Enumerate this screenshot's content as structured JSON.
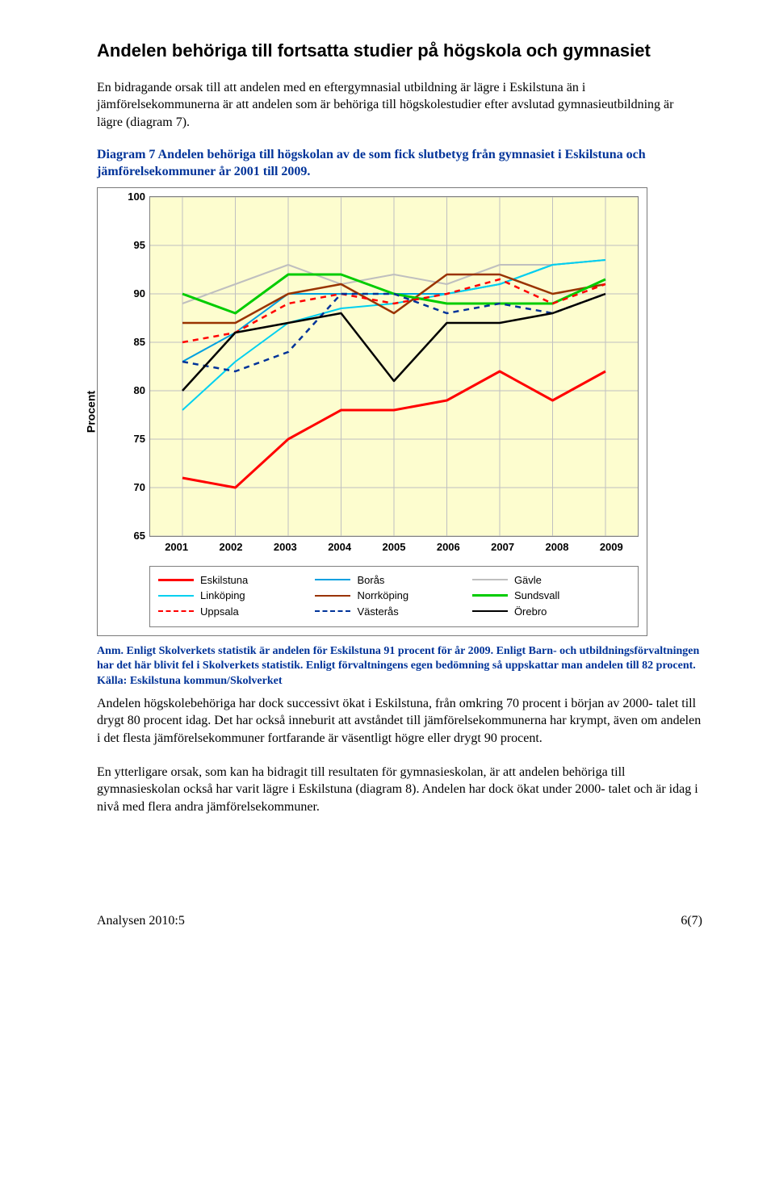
{
  "heading": "Andelen behöriga till fortsatta studier på högskola och gymnasiet",
  "intro": "En bidragande orsak till att andelen med en eftergymnasial utbildning är lägre i Eskilstuna än i jämförelsekommunerna är att andelen som är behöriga till högskolestudier efter avslutad gymnasieutbildning är lägre (diagram 7).",
  "caption": "Diagram 7 Andelen behöriga till högskolan av de som fick slutbetyg från gymnasiet i Eskilstuna och jämförelsekommuner år 2001 till 2009.",
  "chart": {
    "type": "line",
    "background_color": "#fdfdcf",
    "grid_color": "#c0c0c0",
    "border_color": "#808080",
    "ylabel": "Procent",
    "ylim": [
      65,
      100
    ],
    "ytick_step": 5,
    "years": [
      "2001",
      "2002",
      "2003",
      "2004",
      "2005",
      "2006",
      "2007",
      "2008",
      "2009"
    ],
    "series": [
      {
        "name": "Eskilstuna",
        "color": "#ff0000",
        "width": 3,
        "dash": "",
        "values": [
          71,
          70,
          75,
          78,
          78,
          79,
          82,
          79,
          82
        ]
      },
      {
        "name": "Borås",
        "color": "#00a0e0",
        "width": 2,
        "dash": "",
        "values": [
          83,
          86,
          90,
          90,
          90,
          90,
          91,
          93,
          93.5
        ]
      },
      {
        "name": "Gävle",
        "color": "#bfbfbf",
        "width": 2,
        "dash": "",
        "values": [
          89,
          91,
          93,
          91,
          92,
          91,
          93,
          93,
          93.5
        ]
      },
      {
        "name": "Linköping",
        "color": "#00d0f0",
        "width": 2,
        "dash": "",
        "values": [
          78,
          83,
          87,
          88.5,
          89,
          90,
          91,
          93,
          93.5
        ]
      },
      {
        "name": "Norrköping",
        "color": "#993300",
        "width": 2.5,
        "dash": "",
        "values": [
          87,
          87,
          90,
          91,
          88,
          92,
          92,
          90,
          91
        ]
      },
      {
        "name": "Sundsvall",
        "color": "#00cc00",
        "width": 3,
        "dash": "",
        "values": [
          90,
          88,
          92,
          92,
          90,
          89,
          89,
          89,
          91.5
        ]
      },
      {
        "name": "Uppsala",
        "color": "#ff0000",
        "width": 2.5,
        "dash": "7 6",
        "values": [
          85,
          86,
          89,
          90,
          89,
          90,
          91.5,
          89,
          91
        ]
      },
      {
        "name": "Västerås",
        "color": "#003399",
        "width": 2.5,
        "dash": "7 6",
        "values": [
          83,
          82,
          84,
          90,
          90,
          88,
          89,
          88,
          90
        ]
      },
      {
        "name": "Örebro",
        "color": "#000000",
        "width": 2.5,
        "dash": "",
        "values": [
          80,
          86,
          87,
          88,
          81,
          87,
          87,
          88,
          90
        ]
      }
    ],
    "legend_layout": [
      [
        "Eskilstuna",
        "Borås",
        "Gävle"
      ],
      [
        "Linköping",
        "Norrköping",
        "Sundsvall"
      ],
      [
        "Uppsala",
        "Västerås",
        "Örebro"
      ]
    ]
  },
  "note": "Anm. Enligt Skolverkets statistik är andelen för Eskilstuna 91 procent för år 2009. Enligt Barn- och utbildningsförvaltningen har det här blivit fel i Skolverkets statistik. Enligt förvaltningens egen bedömning så uppskattar man andelen till 82 procent.\nKälla: Eskilstuna kommun/Skolverket",
  "para1": "Andelen högskolebehöriga har dock successivt ökat i Eskilstuna, från omkring 70 procent i början av 2000- talet till drygt 80 procent idag. Det har också inneburit att avståndet till jämförelsekommunerna har krympt, även om andelen i det flesta jämförelsekommuner fortfarande är väsentligt högre eller drygt 90 procent.",
  "para2": "En ytterligare orsak, som kan ha bidragit till resultaten för gymnasieskolan, är att andelen behöriga till gymnasieskolan också har varit lägre i Eskilstuna (diagram 8). Andelen har dock ökat under 2000- talet och är idag i nivå med flera andra jämförelsekommuner.",
  "footer_left": "Analysen 2010:5",
  "footer_right": "6(7)"
}
